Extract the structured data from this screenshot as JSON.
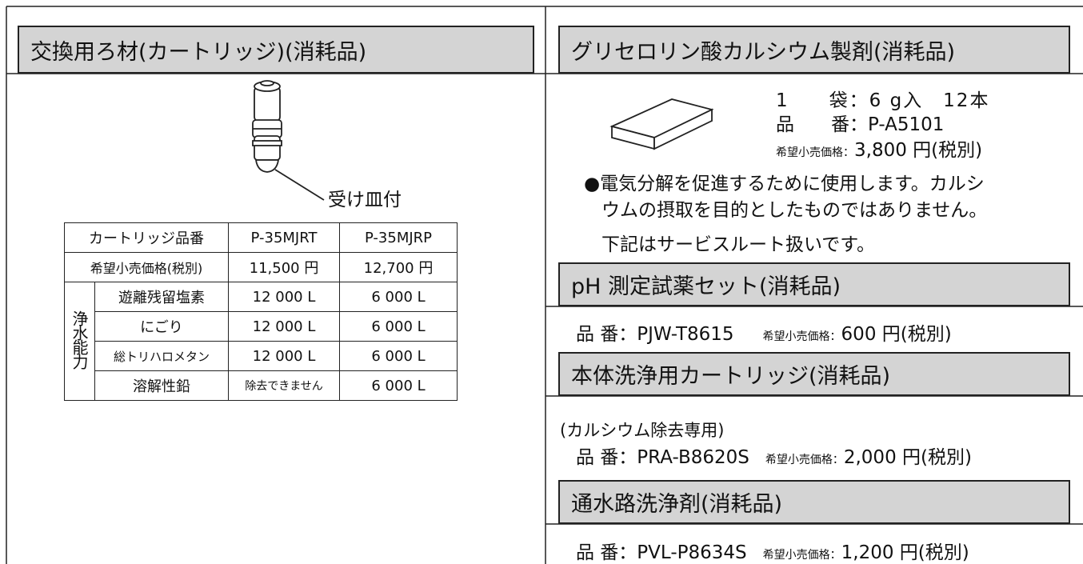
{
  "left": {
    "title": "交換用ろ材(カートリッジ)(消耗品)",
    "callout": "受け皿付",
    "table": {
      "header": [
        "カートリッジ品番",
        "P-35MJRT",
        "P-35MJRP"
      ],
      "price_row": [
        "希望小売価格(税別)",
        "11,500 円",
        "12,700 円"
      ],
      "side_label": "浄水能力",
      "rows": [
        [
          "遊離残留塩素",
          "12 000 L",
          "6 000 L"
        ],
        [
          "にごり",
          "12 000 L",
          "6 000 L"
        ],
        [
          "総トリハロメタン",
          "12 000 L",
          "6 000 L"
        ],
        [
          "溶解性鉛",
          "除去できません",
          "6 000 L"
        ]
      ]
    }
  },
  "right": {
    "title": "グリセロリン酸カルシウム製剤(消耗品)",
    "pack_lines": [
      "1　　袋：6 g入　12本",
      "品　　番：P-A5101"
    ],
    "price_label": "希望小売価格：",
    "price": "3,800 円(税別)",
    "note_lines": [
      "●電気分解を促進するために使用します。カルシ",
      "ウムの摂取を目的としたものではありません。"
    ],
    "service_note": "下記はサービスルート扱いです。",
    "sections": [
      {
        "title": "pH 測定試薬セット(消耗品)",
        "code": "品 番：PJW-T8615",
        "price_label": "希望小売価格：",
        "price": "600 円(税別)"
      },
      {
        "title": "本体洗浄用カートリッジ(消耗品)",
        "sub": "(カルシウム除去専用)",
        "code": "品 番：PRA-B8620S",
        "price_label": "希望小売価格：",
        "price": "2,000 円(税別)"
      },
      {
        "title": "通水路洗浄剤(消耗品)",
        "code": "品 番：PVL-P8634S",
        "price_label": "希望小売価格：",
        "price": "1,200 円(税別)"
      }
    ]
  }
}
